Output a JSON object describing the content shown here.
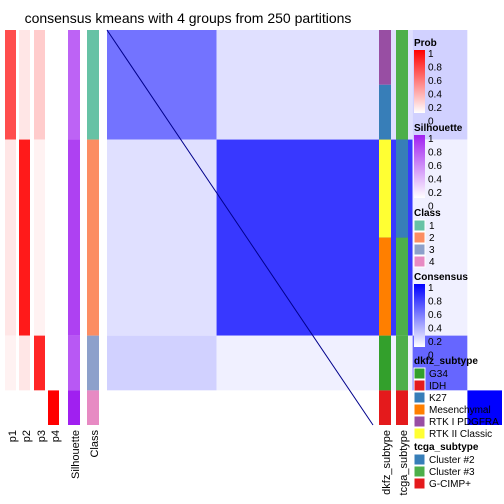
{
  "chart_data": {
    "type": "heatmap",
    "title": "consensus kmeans with 4 groups from 250 partitions",
    "groups": [
      {
        "class": 1,
        "n": 38
      },
      {
        "class": 2,
        "n": 68
      },
      {
        "class": 3,
        "n": 19
      },
      {
        "class": 4,
        "n": 12
      }
    ],
    "within_consensus": [
      0.55,
      0.78,
      0.6,
      1.0
    ],
    "between_consensus": {
      "1-2": 0.12,
      "1-3": 0.18,
      "1-4": 0.0,
      "2-3": 0.06,
      "2-4": 0.0,
      "3-4": 0.0
    },
    "prob_columns": [
      "p1",
      "p2",
      "p3",
      "p4"
    ],
    "group_probabilities": [
      [
        0.7,
        0.1,
        0.2,
        0.0
      ],
      [
        0.1,
        0.9,
        0.05,
        0.0
      ],
      [
        0.05,
        0.1,
        0.85,
        0.0
      ],
      [
        0.0,
        0.0,
        0.0,
        1.0
      ]
    ],
    "silhouette": [
      0.7,
      0.85,
      0.75,
      1.0
    ],
    "annotation_columns": [
      "Silhouette",
      "Class",
      "dkfz_subtype",
      "tcga_subtype"
    ],
    "legends": {
      "prob": {
        "title": "Prob",
        "ticks": [
          "1",
          "0.8",
          "0.6",
          "0.4",
          "0.2",
          "0"
        ],
        "color_low": "#ffffff",
        "color_high": "#ff0000"
      },
      "silhouette": {
        "title": "Silhouette",
        "ticks": [
          "1",
          "0.8",
          "0.6",
          "0.4",
          "0.2",
          "0"
        ],
        "color_low": "#ffffff",
        "color_high": "#a020f0"
      },
      "class": {
        "title": "Class",
        "items": [
          {
            "label": "1",
            "color": "#66c2a5"
          },
          {
            "label": "2",
            "color": "#fc8d62"
          },
          {
            "label": "3",
            "color": "#8da0cb"
          },
          {
            "label": "4",
            "color": "#e78ac3"
          }
        ]
      },
      "consensus": {
        "title": "Consensus",
        "ticks": [
          "1",
          "0.8",
          "0.6",
          "0.4",
          "0.2",
          "0"
        ],
        "color_low": "#ffffff",
        "color_high": "#0000ff"
      },
      "dkfz_subtype": {
        "title": "dkfz_subtype",
        "items": [
          {
            "label": "G34",
            "color": "#33a02c"
          },
          {
            "label": "IDH",
            "color": "#e41a1c"
          },
          {
            "label": "K27",
            "color": "#377eb8"
          },
          {
            "label": "Mesenchymal",
            "color": "#ff7f00"
          },
          {
            "label": "RTK I PDGFRA",
            "color": "#984ea3"
          },
          {
            "label": "RTK II Classic",
            "color": "#ffff33"
          }
        ]
      },
      "tcga_subtype": {
        "title": "tcga_subtype",
        "items": [
          {
            "label": "Cluster #2",
            "color": "#377eb8"
          },
          {
            "label": "Cluster #3",
            "color": "#4daf4a"
          },
          {
            "label": "G-CIMP+",
            "color": "#e41a1c"
          }
        ]
      }
    }
  }
}
